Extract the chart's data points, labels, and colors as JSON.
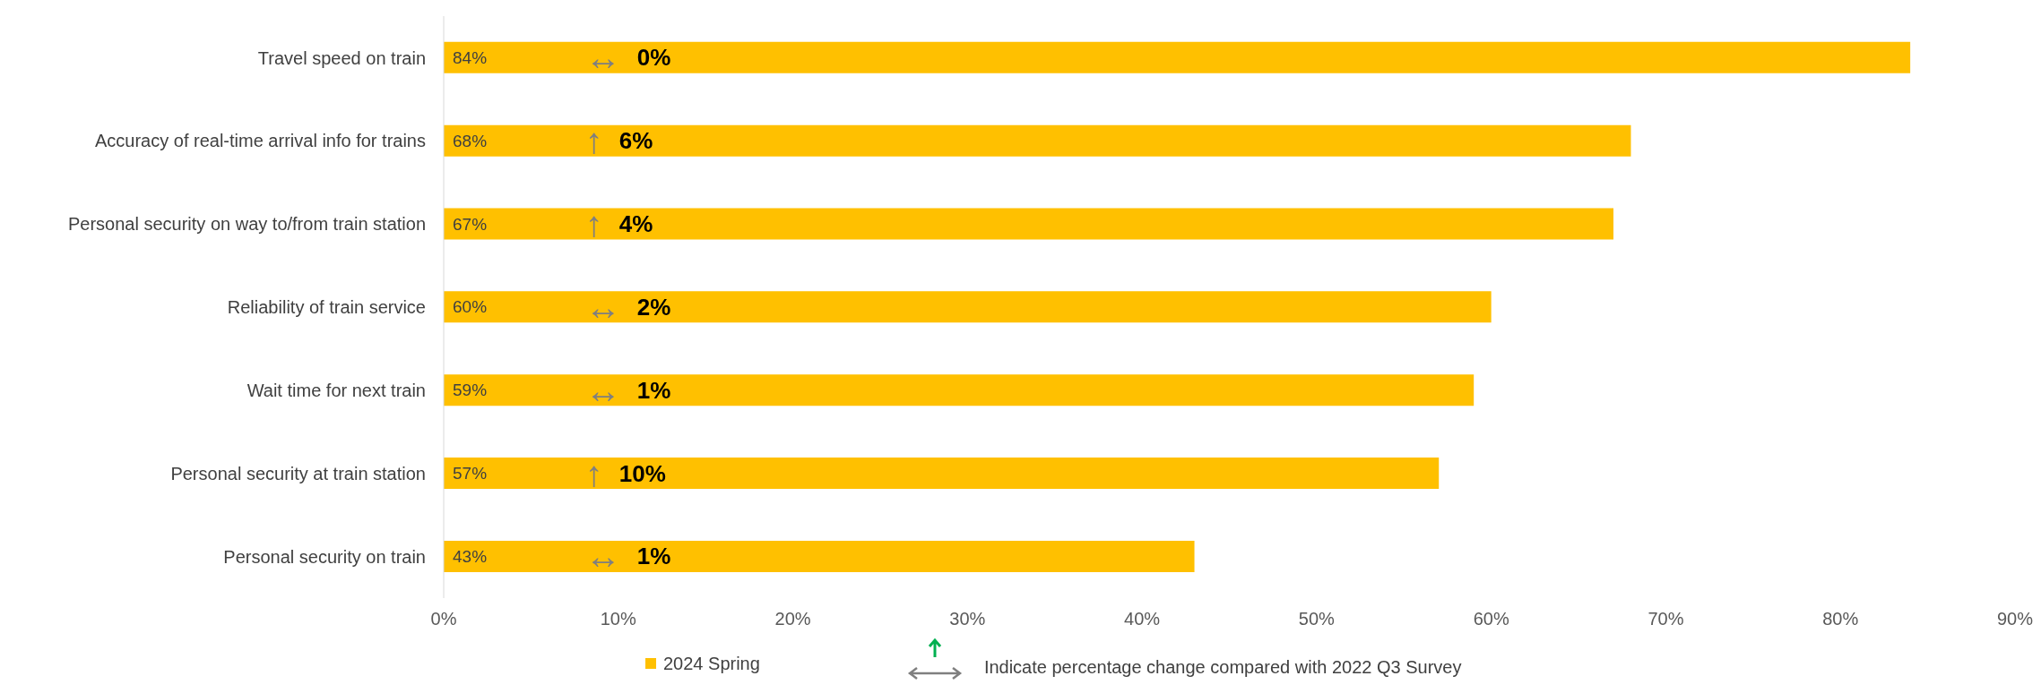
{
  "chart_data": {
    "type": "bar",
    "orientation": "horizontal",
    "categories": [
      "Travel speed on train",
      "Accuracy of real-time arrival info for trains",
      "Personal security on  way to/from  train station",
      "Reliability of train service",
      "Wait time for next train",
      "Personal security at  train station",
      "Personal security on  train"
    ],
    "series": [
      {
        "name": "2024 Spring",
        "color": "#ffc000",
        "values": [
          84,
          68,
          67,
          60,
          59,
          57,
          43
        ],
        "value_labels": [
          "84%",
          "68%",
          "67%",
          "60%",
          "59%",
          "57%",
          "43%"
        ]
      }
    ],
    "xlim": [
      0,
      90
    ],
    "xticks": [
      {
        "value": 0,
        "label": "0%"
      },
      {
        "value": 10,
        "label": "10%"
      },
      {
        "value": 20,
        "label": "20%"
      },
      {
        "value": 30,
        "label": "30%"
      },
      {
        "value": 40,
        "label": "40%"
      },
      {
        "value": 50,
        "label": "50%"
      },
      {
        "value": 60,
        "label": "60%"
      },
      {
        "value": 70,
        "label": "70%"
      },
      {
        "value": 80,
        "label": "80%"
      },
      {
        "value": 90,
        "label": "90%"
      }
    ],
    "grid": false,
    "legend": "bottom",
    "annotations": [
      "↔ 0%",
      "↑ 6%",
      "↑ 4%",
      "↔ 2%",
      "↔ 1%",
      "↑ 10%",
      "↔ 1%",
      "Indicate percentage change compared with 2022 Q3 Survey"
    ]
  }
}
